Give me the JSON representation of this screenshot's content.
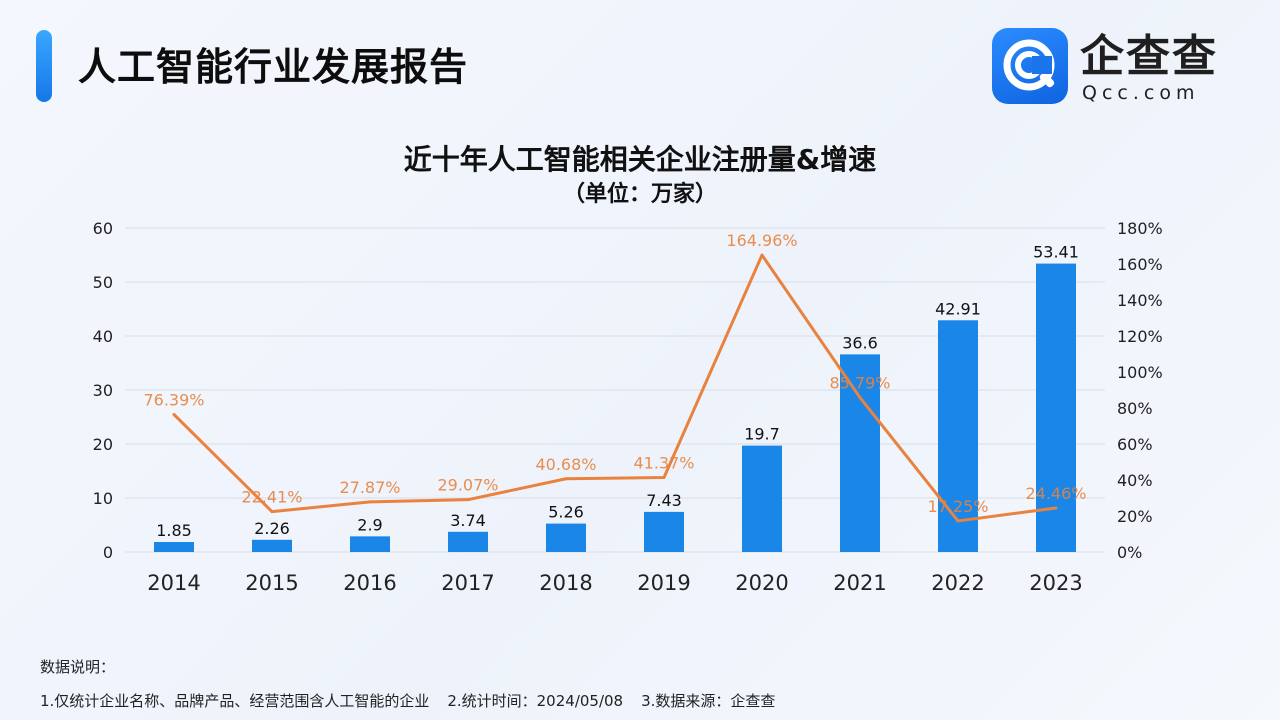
{
  "header": {
    "title": "人工智能行业发展报告",
    "logo_name": "企查查",
    "logo_domain": "Qcc.com",
    "logo_mark": "Q"
  },
  "colors": {
    "bar": "#1a87e8",
    "line": "#e8823e",
    "grid": "#d9dde6",
    "accent": "#1677e8"
  },
  "chart_data": {
    "type": "bar",
    "title": "近十年人工智能相关企业注册量&增速",
    "subtitle": "（单位：万家）",
    "categories": [
      "2014",
      "2015",
      "2016",
      "2017",
      "2018",
      "2019",
      "2020",
      "2021",
      "2022",
      "2023"
    ],
    "series": [
      {
        "type": "bar",
        "axis": "left",
        "values": [
          1.85,
          2.26,
          2.9,
          3.74,
          5.26,
          7.43,
          19.7,
          36.6,
          42.91,
          53.41
        ],
        "labels": [
          "1.85",
          "2.26",
          "2.9",
          "3.74",
          "5.26",
          "7.43",
          "19.7",
          "36.6",
          "42.91",
          "53.41"
        ]
      },
      {
        "type": "line",
        "axis": "right",
        "values": [
          76.39,
          22.41,
          27.87,
          29.07,
          40.68,
          41.37,
          164.96,
          85.79,
          17.25,
          24.46
        ],
        "labels": [
          "76.39%",
          "22.41%",
          "27.87%",
          "29.07%",
          "40.68%",
          "41.37%",
          "164.96%",
          "85.79%",
          "17.25%",
          "24.46%"
        ]
      }
    ],
    "y_left": {
      "min": 0,
      "max": 60,
      "ticks": [
        "0",
        "10",
        "20",
        "30",
        "40",
        "50",
        "60"
      ]
    },
    "y_right": {
      "min": 0,
      "max": 180,
      "ticks": [
        "0%",
        "20%",
        "40%",
        "60%",
        "80%",
        "100%",
        "120%",
        "140%",
        "160%",
        "180%"
      ]
    },
    "grid": true,
    "legend": "none"
  },
  "notes": {
    "heading": "数据说明：",
    "items": [
      "1.仅统计企业名称、品牌产品、经营范围含人工智能的企业",
      "2.统计时间：2024/05/08",
      "3.数据来源：企查查"
    ]
  }
}
